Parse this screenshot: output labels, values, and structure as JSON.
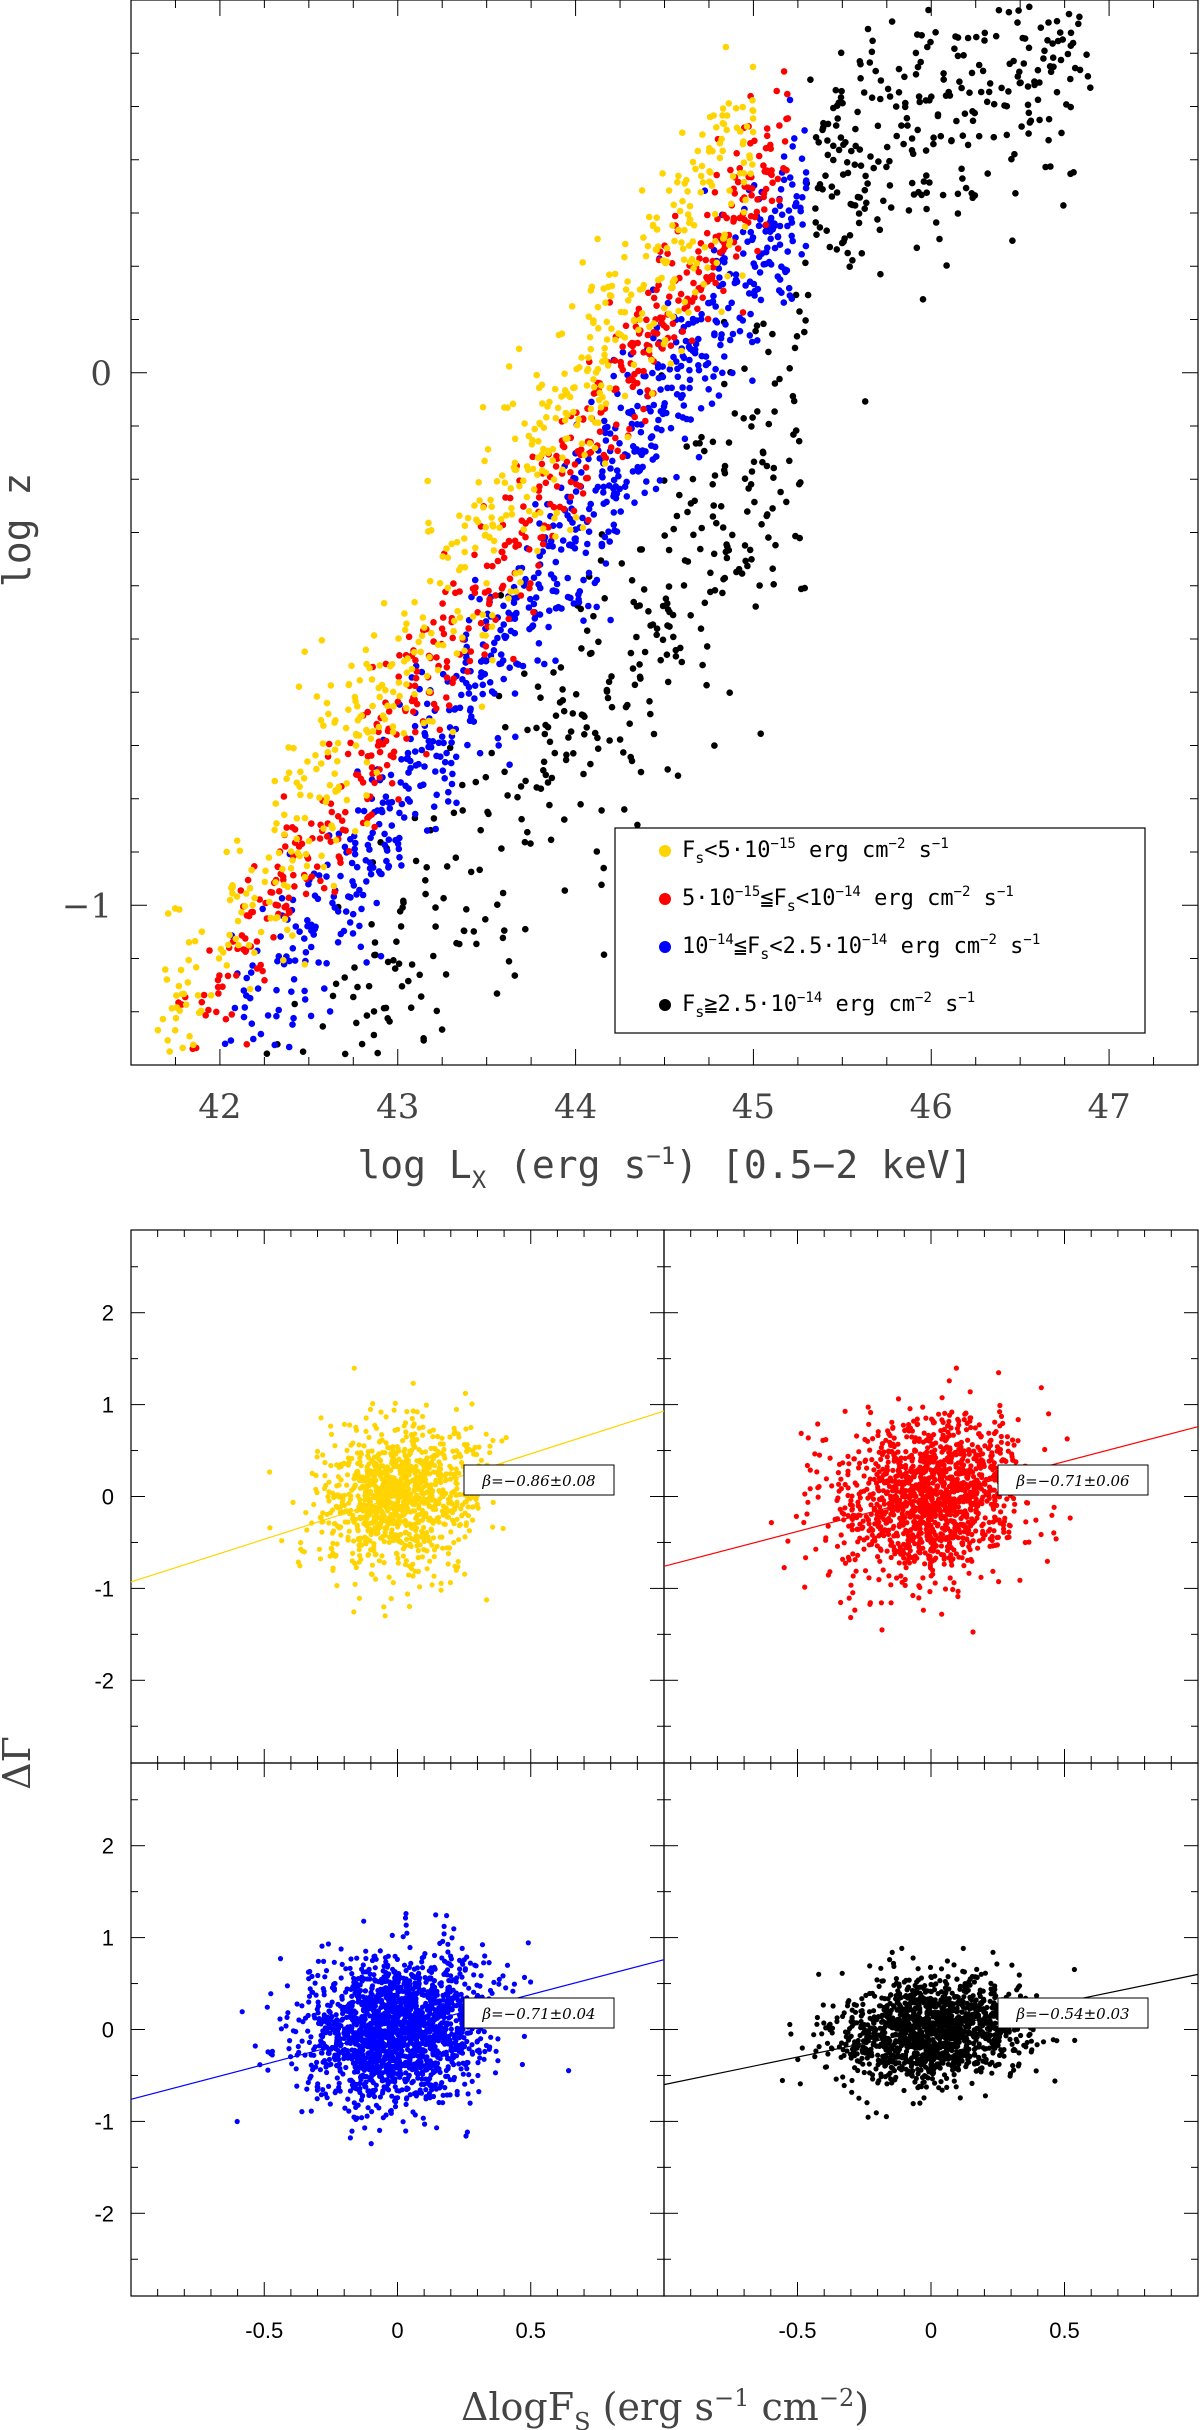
{
  "chart_data": [
    {
      "type": "scatter",
      "title": "",
      "xlabel": "log L_X (erg s^-1) [0.5-2 keV]",
      "ylabel": "log z",
      "xlim": [
        41.5,
        47.5
      ],
      "ylim": [
        -1.3,
        0.7
      ],
      "xticks": [
        "42",
        "43",
        "44",
        "45",
        "46",
        "47"
      ],
      "yticks": [
        "0",
        "−1"
      ],
      "legend_position": "bottom-right",
      "series": [
        {
          "name": "F_s<5·10^-15 erg cm^-2 s^-1",
          "color": "#ffd400",
          "trend": {
            "slope": 0.5,
            "intercept": -22.05,
            "spread": 0.1
          },
          "xrange": [
            41.6,
            45.0
          ],
          "count": 600
        },
        {
          "name": "5·10^-15≦F_s<10^-14 erg cm^-2 s^-1",
          "color": "#ff0000",
          "trend": {
            "slope": 0.5,
            "intercept": -22.15,
            "spread": 0.07
          },
          "xrange": [
            41.75,
            45.2
          ],
          "count": 560
        },
        {
          "name": "10^-14≦F_s<2.5·10^-14 erg cm^-2 s^-1",
          "color": "#0000ff",
          "trend": {
            "slope": 0.5,
            "intercept": -22.3,
            "spread": 0.09
          },
          "xrange": [
            42.0,
            45.3
          ],
          "count": 760
        },
        {
          "name": "F_s≧2.5·10^-14 erg cm^-2 s^-1",
          "color": "#000000",
          "trend": {
            "slope": 0.48,
            "intercept": -21.8,
            "spread": 0.16
          },
          "xrange": [
            42.2,
            46.9
          ],
          "count": 700
        }
      ]
    },
    {
      "type": "scatter",
      "panel": "top-left",
      "color": "#ffd400",
      "fit": {
        "slope": 0.93,
        "intercept": 0.0
      },
      "cloud": {
        "count": 1100,
        "sx": 0.14,
        "sy": 0.4
      },
      "annotation": "β=−0.86±0.08",
      "xlim": [
        -1.0,
        1.0
      ],
      "ylim": [
        -2.9,
        2.9
      ]
    },
    {
      "type": "scatter",
      "panel": "top-right",
      "color": "#ff0000",
      "fit": {
        "slope": 0.76,
        "intercept": 0.0
      },
      "cloud": {
        "count": 1400,
        "sx": 0.17,
        "sy": 0.42
      },
      "annotation": "β=−0.71±0.06",
      "xlim": [
        -1.0,
        1.0
      ],
      "ylim": [
        -2.9,
        2.9
      ]
    },
    {
      "type": "scatter",
      "panel": "bottom-left",
      "color": "#0000ff",
      "fit": {
        "slope": 0.76,
        "intercept": 0.0
      },
      "cloud": {
        "count": 1900,
        "sx": 0.17,
        "sy": 0.38
      },
      "annotation": "β=−0.71±0.04",
      "xlim": [
        -1.0,
        1.0
      ],
      "ylim": [
        -2.9,
        2.9
      ]
    },
    {
      "type": "scatter",
      "panel": "bottom-right",
      "color": "#000000",
      "fit": {
        "slope": 0.6,
        "intercept": 0.0
      },
      "cloud": {
        "count": 1400,
        "sx": 0.17,
        "sy": 0.28
      },
      "annotation": "β=−0.54±0.03",
      "xlim": [
        -1.0,
        1.0
      ],
      "ylim": [
        -2.9,
        2.9
      ]
    }
  ],
  "lower_panels": {
    "xlabel": "ΔlogF_S (erg s^-1 cm^-2)",
    "ylabel": "ΔΓ",
    "xticks": [
      "-0.5",
      "0",
      "0.5"
    ],
    "yticks": [
      "2",
      "1",
      "0",
      "-1",
      "-2"
    ]
  },
  "labels": {
    "top_xlabel_main": "log L",
    "top_xlabel_sub": "X",
    "top_xlabel_rest": " (erg s",
    "top_xlabel_sup": "−1",
    "top_xlabel_end": ") [0.5−2 keV]",
    "top_ylabel": "log z",
    "bottom_xlabel_main": "ΔlogF",
    "bottom_xlabel_sub": "S",
    "bottom_xlabel_rest1": " (erg s",
    "bottom_xlabel_sup1": "−1",
    "bottom_xlabel_rest2": " cm",
    "bottom_xlabel_sup2": "−2",
    "bottom_xlabel_end": ")",
    "bottom_ylabel": "ΔΓ"
  },
  "legend": [
    {
      "pre": "F",
      "sub": "s",
      "mid": "<5·10",
      "sup": "−15",
      "post": " erg cm",
      "sup2": "−2",
      "post2": " s",
      "sup3": "−1"
    },
    {
      "pre": "5·10",
      "sub": "",
      "mid": "",
      "sup": "−15",
      "post": "≦F",
      "sub2": "s",
      "post1b": "<10",
      "sup1b": "−14",
      "post2": " erg cm",
      "sup2": "−2",
      "post3": " s",
      "sup3": "−1"
    },
    {
      "pre": "10",
      "sup0": "−14",
      "mid": "≦F",
      "sub": "s",
      "post": "<2.5·10",
      "sup": "−14",
      "post2": " erg cm",
      "sup2": "−2",
      "post3": " s",
      "sup3": "−1"
    },
    {
      "pre": "F",
      "sub": "s",
      "mid": "≧2.5·10",
      "sup": "−14",
      "post": " erg cm",
      "sup2": "−2",
      "post2": " s",
      "sup3": "−1"
    }
  ]
}
